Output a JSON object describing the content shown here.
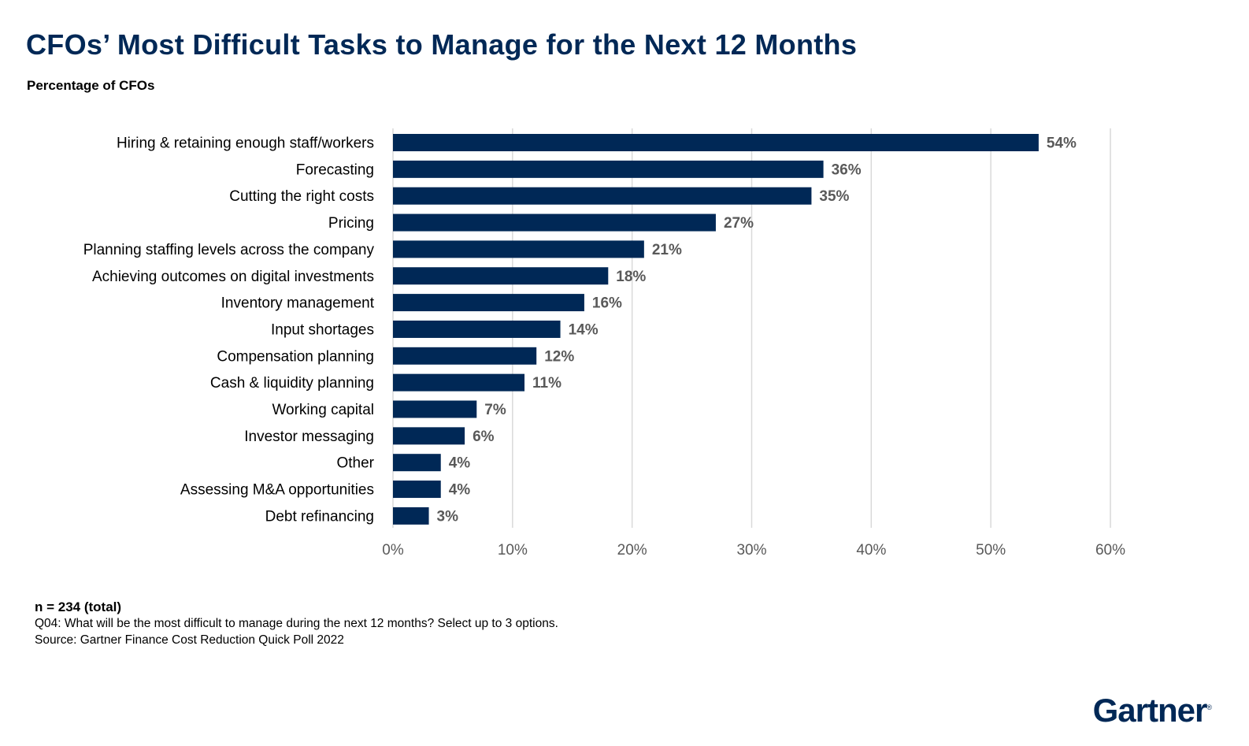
{
  "title": "CFOs’ Most Difficult Tasks to Manage for the Next 12 Months",
  "subtitle": "Percentage of CFOs",
  "chart_data": {
    "type": "bar",
    "orientation": "horizontal",
    "categories": [
      "Hiring & retaining enough staff/workers",
      "Forecasting",
      "Cutting the right costs",
      "Pricing",
      "Planning staffing levels across the company",
      "Achieving outcomes on digital investments",
      "Inventory management",
      "Input shortages",
      "Compensation planning",
      "Cash & liquidity planning",
      "Working capital",
      "Investor messaging",
      "Other",
      "Assessing M&A opportunities",
      "Debt refinancing"
    ],
    "values": [
      54,
      36,
      35,
      27,
      21,
      18,
      16,
      14,
      12,
      11,
      7,
      6,
      4,
      4,
      3
    ],
    "data_labels": [
      "54%",
      "36%",
      "35%",
      "27%",
      "21%",
      "18%",
      "16%",
      "14%",
      "12%",
      "11%",
      "7%",
      "6%",
      "4%",
      "4%",
      "3%"
    ],
    "xlim": [
      0,
      60
    ],
    "xticks": [
      "0%",
      "10%",
      "20%",
      "30%",
      "40%",
      "50%",
      "60%"
    ],
    "xlabel": "",
    "ylabel": "",
    "grid": true,
    "bar_color": "#002856",
    "label_color": "#595959"
  },
  "footer": {
    "n": "n = 234 (total)",
    "question": "Q04: What will be the most difficult to manage during the next 12 months? Select up to 3 options.",
    "source": "Source: Gartner Finance Cost Reduction Quick Poll 2022"
  },
  "logo": "Gartner"
}
